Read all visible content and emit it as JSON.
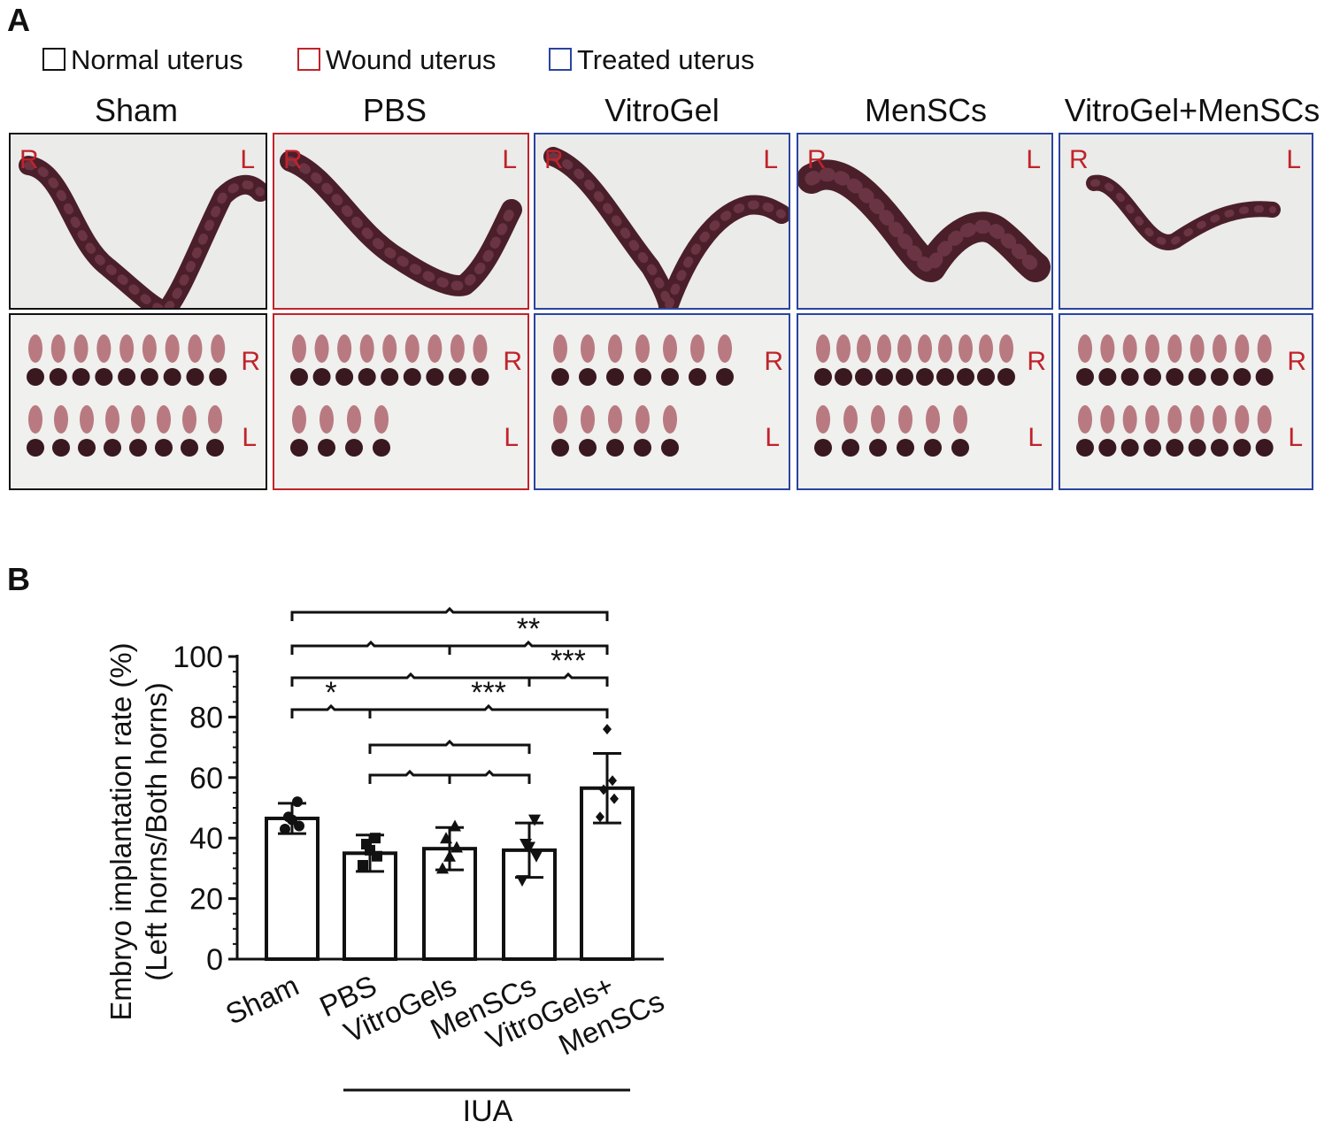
{
  "panel_a": {
    "letter": "A",
    "legend": [
      {
        "label": "Normal uterus",
        "color": "#111111"
      },
      {
        "label": "Wound uterus",
        "color": "#c0232b"
      },
      {
        "label": "Treated uterus",
        "color": "#2a44a0"
      }
    ],
    "groups": [
      "Sham",
      "PBS",
      "VitroGel",
      "MenSCs",
      "VitroGel+MenSCs"
    ],
    "side_labels": {
      "right": "R",
      "left": "L"
    },
    "photo_border_colors": [
      "#111111",
      "#c0232b",
      "#2a44a0",
      "#2a44a0",
      "#2a44a0"
    ],
    "embryo_counts": {
      "right": [
        9,
        9,
        7,
        10,
        9
      ],
      "left": [
        8,
        4,
        5,
        6,
        9
      ]
    }
  },
  "panel_b": {
    "letter": "B",
    "group_bracket_label": "IUA",
    "significance_labels": [
      "**",
      "***",
      "***",
      "*"
    ]
  },
  "chart_data": {
    "type": "bar",
    "title": "",
    "ylabel_line1": "Embryo implantation rate (%)",
    "ylabel_line2": "(Left horns/Both horns)",
    "xlabel": "IUA",
    "ylim": [
      0,
      100
    ],
    "yticks": [
      "0",
      "20",
      "40",
      "60",
      "80",
      "100"
    ],
    "categories": [
      "Sham",
      "PBS",
      "VitroGels",
      "MenSCs",
      "VitroGels+ MenSCs"
    ],
    "category_lines": [
      [
        "Sham"
      ],
      [
        "PBS"
      ],
      [
        "VitroGels"
      ],
      [
        "MenSCs"
      ],
      [
        "VitroGels+",
        "MenSCs"
      ]
    ],
    "values": [
      46.5,
      35,
      36.5,
      36,
      56.5
    ],
    "sd": [
      5,
      6,
      7,
      9,
      11.5
    ],
    "points": [
      [
        43,
        44,
        47,
        52,
        46
      ],
      [
        31,
        34,
        38,
        40,
        36
      ],
      [
        30,
        37,
        40,
        44,
        34
      ],
      [
        26,
        34,
        38,
        46,
        37
      ],
      [
        47,
        53,
        56,
        59,
        76
      ]
    ],
    "markers": [
      "circle",
      "square",
      "triangle-up",
      "triangle-down",
      "diamond"
    ],
    "comparisons": [
      {
        "from": 0,
        "to": 4,
        "label": ""
      },
      {
        "from": 0,
        "to": 2,
        "label": ""
      },
      {
        "from": 2,
        "to": 4,
        "label": "**"
      },
      {
        "from": 3,
        "to": 4,
        "label": "***"
      },
      {
        "from": 0,
        "to": 3,
        "label": ""
      },
      {
        "from": 1,
        "to": 4,
        "label": "***"
      },
      {
        "from": 0,
        "to": 1,
        "label": "*"
      },
      {
        "from": 1,
        "to": 3,
        "label": ""
      },
      {
        "from": 1,
        "to": 2,
        "label": ""
      },
      {
        "from": 2,
        "to": 3,
        "label": ""
      }
    ]
  }
}
